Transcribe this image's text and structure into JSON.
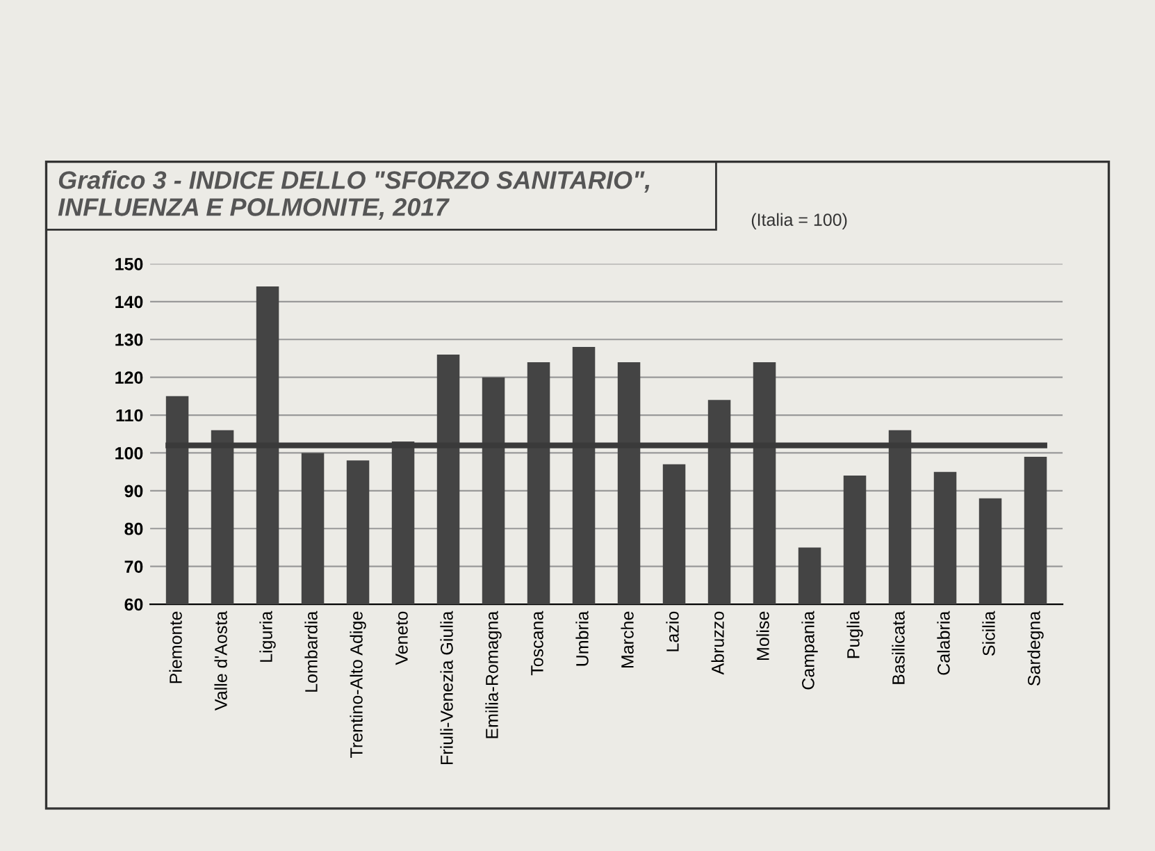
{
  "chart_data": {
    "type": "bar",
    "title": "Grafico 3 - INDICE DELLO \"SFORZO SANITARIO\",\nINFLUENZA E POLMONITE, 2017",
    "subtitle": "(Italia = 100)",
    "categories": [
      "Piemonte",
      "Valle d'Aosta",
      "Liguria",
      "Lombardia",
      "Trentino-Alto Adige",
      "Veneto",
      "Friuli-Venezia Giulia",
      "Emilia-Romagna",
      "Toscana",
      "Umbria",
      "Marche",
      "Lazio",
      "Abruzzo",
      "Molise",
      "Campania",
      "Puglia",
      "Basilicata",
      "Calabria",
      "Sicilia",
      "Sardegna"
    ],
    "values": [
      115,
      106,
      144,
      100,
      98,
      103,
      126,
      120,
      124,
      128,
      124,
      97,
      114,
      124,
      75,
      94,
      106,
      95,
      88,
      99
    ],
    "color": "#444444",
    "ylim": [
      60,
      150
    ],
    "yticks": [
      60,
      70,
      80,
      90,
      100,
      110,
      120,
      130,
      140,
      150
    ],
    "grid": "y",
    "ref_lines": [
      {
        "axis": "y",
        "value": 102,
        "color": "#3a3a3a"
      }
    ]
  }
}
